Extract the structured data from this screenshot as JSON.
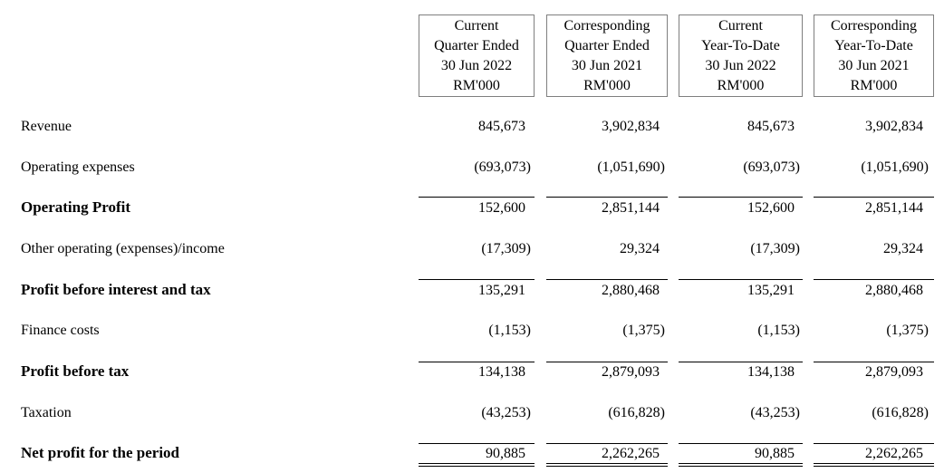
{
  "headers": [
    {
      "line1": "Current",
      "line2": "Quarter Ended",
      "line3": "30 Jun 2022",
      "line4": "RM'000"
    },
    {
      "line1": "Corresponding",
      "line2": "Quarter Ended",
      "line3": "30 Jun 2021",
      "line4": "RM'000"
    },
    {
      "line1": "Current",
      "line2": "Year-To-Date",
      "line3": "30 Jun 2022",
      "line4": "RM'000"
    },
    {
      "line1": "Corresponding",
      "line2": "Year-To-Date",
      "line3": "30 Jun 2021",
      "line4": "RM'000"
    }
  ],
  "rows": {
    "revenue": {
      "label": "Revenue",
      "values": [
        "845,673",
        "3,902,834",
        "845,673",
        "3,902,834"
      ]
    },
    "operating_expenses": {
      "label": "Operating expenses",
      "values": [
        "(693,073)",
        "(1,051,690)",
        "(693,073)",
        "(1,051,690)"
      ]
    },
    "operating_profit": {
      "label": "Operating Profit",
      "values": [
        "152,600",
        "2,851,144",
        "152,600",
        "2,851,144"
      ]
    },
    "other_operating": {
      "label": "Other operating (expenses)/income",
      "values": [
        "(17,309)",
        "29,324",
        "(17,309)",
        "29,324"
      ]
    },
    "pbit": {
      "label": "Profit before interest and tax",
      "values": [
        "135,291",
        "2,880,468",
        "135,291",
        "2,880,468"
      ]
    },
    "finance_costs": {
      "label": "Finance costs",
      "values": [
        "(1,153)",
        "(1,375)",
        "(1,153)",
        "(1,375)"
      ]
    },
    "pbt": {
      "label": "Profit before tax",
      "values": [
        "134,138",
        "2,879,093",
        "134,138",
        "2,879,093"
      ]
    },
    "taxation": {
      "label": "Taxation",
      "values": [
        "(43,253)",
        "(616,828)",
        "(43,253)",
        "(616,828)"
      ]
    },
    "net_profit": {
      "label": "Net profit for the period",
      "values": [
        "90,885",
        "2,262,265",
        "90,885",
        "2,262,265"
      ]
    }
  }
}
